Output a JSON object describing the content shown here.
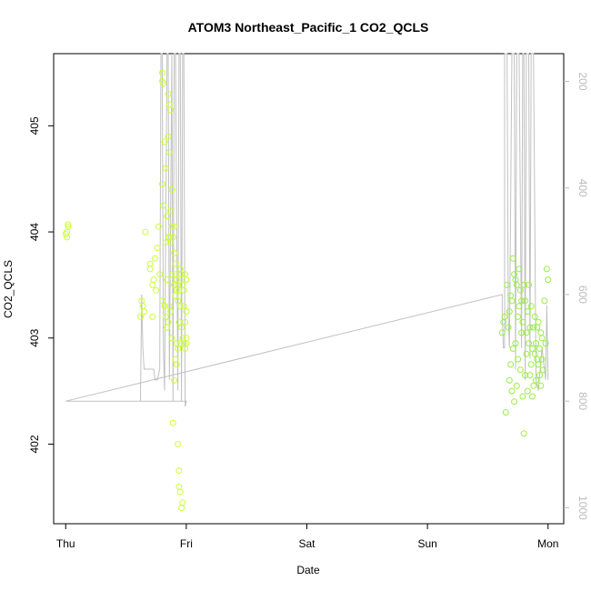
{
  "chart_data": {
    "type": "scatter",
    "title": "ATOM3 Northeast_Pacific_1 CO2_QCLS",
    "xlabel": "Date",
    "ylabel": "CO2_QCLS",
    "x_ticks": [
      "Thu",
      "Fri",
      "Sat",
      "Sun",
      "Mon"
    ],
    "x_range_days": [
      -0.1,
      4.13
    ],
    "ylim": [
      401.25,
      405.68
    ],
    "y_ticks": [
      402,
      403,
      404,
      405
    ],
    "y2_ticks": [
      200,
      400,
      600,
      800,
      1000
    ],
    "y2_range": [
      148,
      1030
    ],
    "y2_color": "#bbbbbb",
    "grid": false,
    "legend": "none",
    "colors": {
      "series1": "#ccff33",
      "series2": "#99ee44",
      "line": "#c0c0c0"
    },
    "series": [
      {
        "color": "#ccff33",
        "x": [
          0.01,
          0.01,
          0.02,
          0.02,
          0.0,
          0.62,
          0.63,
          0.64,
          0.65,
          0.66,
          0.7,
          0.7,
          0.72,
          0.72,
          0.73,
          0.74,
          0.75,
          0.76,
          0.77,
          0.78,
          0.8,
          0.8,
          0.8,
          0.8,
          0.81,
          0.81,
          0.82,
          0.82,
          0.83,
          0.83,
          0.83,
          0.84,
          0.84,
          0.84,
          0.85,
          0.85,
          0.85,
          0.85,
          0.86,
          0.86,
          0.86,
          0.86,
          0.87,
          0.87,
          0.87,
          0.87,
          0.88,
          0.88,
          0.88,
          0.88,
          0.89,
          0.89,
          0.9,
          0.9,
          0.9,
          0.9,
          0.91,
          0.91,
          0.91,
          0.91,
          0.92,
          0.92,
          0.92,
          0.92,
          0.93,
          0.93,
          0.93,
          0.93,
          0.94,
          0.94,
          0.94,
          0.94,
          0.95,
          0.95,
          0.95,
          0.95,
          0.96,
          0.96,
          0.96,
          0.97,
          0.97,
          0.97,
          0.98,
          0.98,
          0.98,
          0.99,
          0.99,
          0.99,
          1.0,
          1.0,
          1.0,
          1.0
        ],
        "y": [
          403.95,
          404.0,
          404.05,
          404.07,
          403.98,
          403.2,
          403.35,
          403.3,
          403.25,
          404.0,
          403.7,
          403.65,
          403.5,
          403.2,
          403.55,
          403.75,
          403.45,
          403.85,
          404.05,
          403.6,
          405.5,
          405.42,
          404.45,
          403.35,
          405.4,
          404.25,
          404.85,
          403.3,
          404.6,
          403.9,
          403.2,
          404.15,
          403.55,
          403.1,
          405.3,
          404.9,
          403.95,
          403.15,
          405.2,
          404.75,
          403.95,
          403.3,
          405.15,
          404.2,
          403.9,
          403.25,
          404.4,
          404.05,
          403.6,
          403.0,
          403.95,
          402.2,
          403.8,
          403.5,
          402.6,
          404.05,
          403.7,
          403.4,
          402.8,
          403.6,
          403.55,
          403.45,
          402.95,
          402.75,
          403.5,
          403.35,
          402.9,
          402.0,
          403.45,
          403.15,
          401.75,
          401.6,
          403.65,
          403.3,
          402.95,
          401.55,
          403.6,
          403.1,
          401.4,
          403.5,
          403.0,
          401.45,
          403.3,
          402.95,
          403.45,
          403.15,
          402.9,
          403.6,
          403.25,
          402.95,
          403.55,
          403.0
        ]
      },
      {
        "color": "#99ee44",
        "x": [
          3.62,
          3.63,
          3.64,
          3.65,
          3.66,
          3.67,
          3.68,
          3.68,
          3.69,
          3.69,
          3.7,
          3.7,
          3.71,
          3.71,
          3.72,
          3.72,
          3.73,
          3.73,
          3.74,
          3.74,
          3.75,
          3.75,
          3.76,
          3.76,
          3.77,
          3.77,
          3.78,
          3.78,
          3.79,
          3.79,
          3.8,
          3.8,
          3.81,
          3.81,
          3.82,
          3.82,
          3.83,
          3.83,
          3.84,
          3.84,
          3.85,
          3.85,
          3.86,
          3.86,
          3.87,
          3.87,
          3.88,
          3.88,
          3.89,
          3.89,
          3.9,
          3.9,
          3.91,
          3.91,
          3.92,
          3.92,
          3.93,
          3.93,
          3.94,
          3.94,
          3.95,
          3.95,
          3.96,
          3.97,
          3.98,
          3.99,
          4.0
        ],
        "y": [
          403.05,
          403.15,
          403.2,
          402.3,
          403.5,
          403.1,
          403.25,
          402.6,
          403.4,
          402.75,
          403.35,
          402.5,
          403.75,
          402.9,
          403.6,
          402.4,
          403.55,
          402.95,
          403.5,
          402.55,
          403.2,
          402.8,
          403.65,
          403.3,
          403.45,
          402.7,
          403.35,
          403.05,
          403.15,
          402.45,
          403.5,
          402.1,
          403.35,
          402.65,
          403.05,
          402.85,
          403.25,
          402.5,
          403.5,
          402.95,
          403.1,
          402.65,
          403.3,
          402.75,
          402.9,
          402.45,
          403.1,
          402.55,
          402.85,
          403.2,
          402.95,
          402.6,
          403.1,
          402.8,
          403.15,
          402.75,
          402.9,
          402.65,
          403.05,
          402.55,
          403.0,
          402.8,
          402.7,
          403.35,
          402.95,
          403.65,
          403.55
        ]
      }
    ],
    "line": {
      "x": [
        0.0,
        0.62,
        0.63,
        0.64,
        0.65,
        0.73,
        0.74,
        0.76,
        0.78,
        0.79,
        0.8,
        0.81,
        0.82,
        0.84,
        0.85,
        0.86,
        0.88,
        0.89,
        0.9,
        0.91,
        0.93,
        0.94,
        0.95,
        0.96,
        0.97,
        0.98,
        0.99,
        1.0,
        0.0,
        3.62,
        3.62,
        3.63,
        3.64,
        3.64,
        3.66,
        3.67,
        3.68,
        3.7,
        3.72,
        3.73,
        3.74,
        3.76,
        3.78,
        3.79,
        3.8,
        3.81,
        3.82,
        3.84,
        3.85,
        3.86,
        3.88,
        3.9,
        3.92,
        3.95,
        3.98,
        3.99,
        4.0
      ],
      "y2": [
        800,
        800,
        600,
        700,
        740,
        740,
        760,
        760,
        740,
        148,
        148,
        700,
        780,
        148,
        148,
        760,
        148,
        800,
        148,
        148,
        780,
        148,
        148,
        800,
        148,
        148,
        810,
        800,
        800,
        600,
        640,
        700,
        700,
        148,
        148,
        640,
        700,
        148,
        148,
        740,
        148,
        148,
        700,
        148,
        148,
        760,
        148,
        148,
        720,
        148,
        148,
        760,
        780,
        700,
        760,
        620,
        760
      ]
    }
  }
}
